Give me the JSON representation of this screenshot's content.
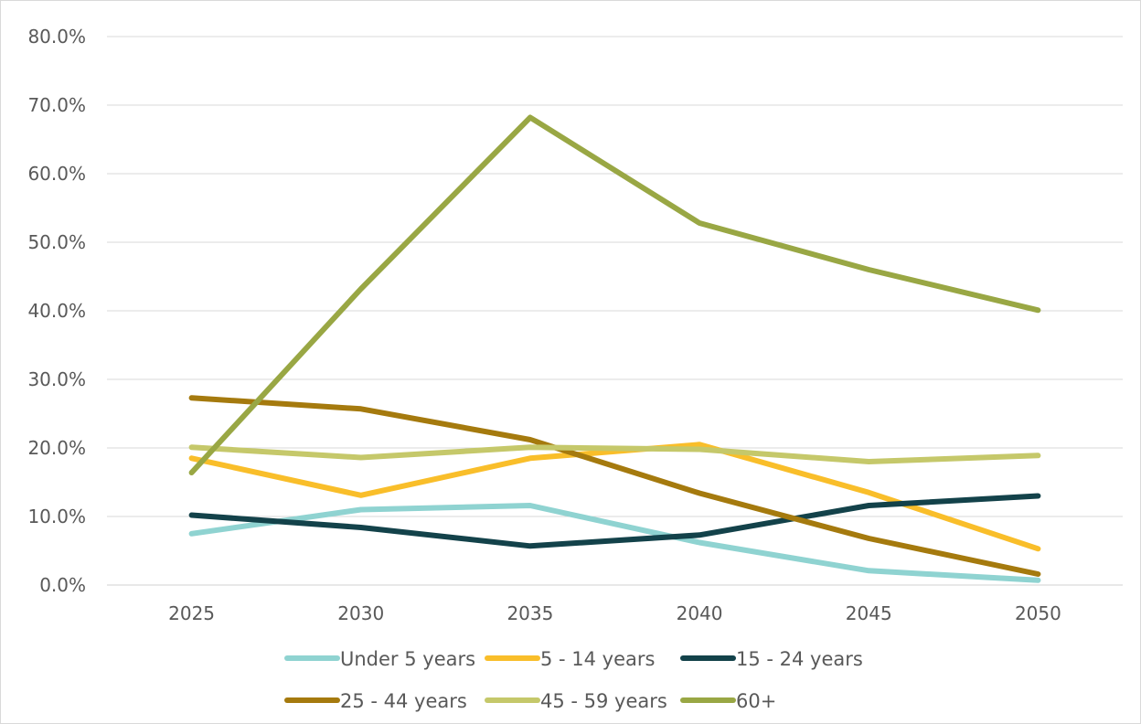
{
  "chart_data": {
    "type": "line",
    "title": "",
    "xlabel": "",
    "ylabel": "",
    "x": [
      "2025",
      "2030",
      "2035",
      "2040",
      "2045",
      "2050"
    ],
    "ylim": [
      0,
      80
    ],
    "yticks": [
      "0.0%",
      "10.0%",
      "20.0%",
      "30.0%",
      "40.0%",
      "50.0%",
      "60.0%",
      "70.0%",
      "80.0%"
    ],
    "grid": true,
    "legend_position": "bottom",
    "series": [
      {
        "name": "Under 5 years",
        "color": "#8fd3d1",
        "values": [
          7.5,
          11.0,
          11.6,
          6.2,
          2.1,
          0.7
        ]
      },
      {
        "name": "5 - 14 years",
        "color": "#f9be2a",
        "values": [
          18.5,
          13.1,
          18.5,
          20.5,
          13.5,
          5.3
        ]
      },
      {
        "name": "15 - 24 years",
        "color": "#13424a",
        "values": [
          10.2,
          8.4,
          5.7,
          7.3,
          11.6,
          13.0
        ]
      },
      {
        "name": "25 - 44 years",
        "color": "#a57a0e",
        "values": [
          27.3,
          25.7,
          21.2,
          13.4,
          6.8,
          1.6
        ]
      },
      {
        "name": "45 - 59 years",
        "color": "#c5c86a",
        "values": [
          20.1,
          18.6,
          20.1,
          19.8,
          18.0,
          18.9
        ]
      },
      {
        "name": "60+",
        "color": "#99a744",
        "values": [
          16.4,
          43.2,
          68.2,
          52.8,
          46.0,
          40.1
        ]
      }
    ]
  }
}
